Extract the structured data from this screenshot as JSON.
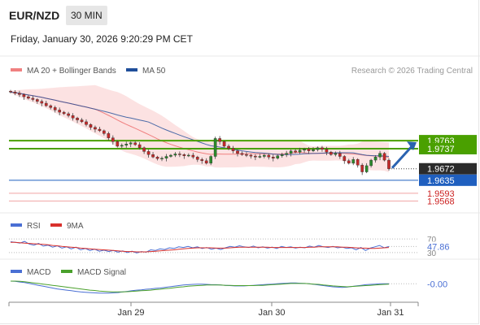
{
  "header": {
    "pair": "EUR/NZD",
    "timeframe": "30 MIN",
    "datetime": "Friday, January 30, 2026 9:20:29 PM CET"
  },
  "legend": {
    "ma20": "MA 20 + Bollinger Bands",
    "ma50": "MA 50",
    "copyright": "Research © 2026 Trading Central",
    "ma20_color": "#f08080",
    "ma50_color": "#1f4e9a"
  },
  "rsi_legend": {
    "rsi": "RSI",
    "ma": "9MA",
    "rsi_color": "#4a6fd4",
    "ma_color": "#d9302c"
  },
  "macd_legend": {
    "macd": "MACD",
    "signal": "MACD Signal",
    "macd_color": "#4a6fd4",
    "signal_color": "#4aa02c"
  },
  "chart_data": [
    {
      "type": "candlestick",
      "series_label": "EUR/NZD 30 MIN",
      "x_ticks": [
        "Jan 29",
        "Jan 30",
        "Jan 31"
      ],
      "ylim": [
        1.954,
        1.9955
      ],
      "close_series": [
        1.992,
        1.9916,
        1.9912,
        1.9905,
        1.99,
        1.9896,
        1.989,
        1.9884,
        1.9876,
        1.987,
        1.9862,
        1.9855,
        1.985,
        1.9844,
        1.9836,
        1.983,
        1.9824,
        1.9815,
        1.9806,
        1.98,
        1.9795,
        1.9786,
        1.9772,
        1.976,
        1.9745,
        1.9748,
        1.9752,
        1.9756,
        1.975,
        1.974,
        1.9728,
        1.9718,
        1.971,
        1.9705,
        1.9706,
        1.9712,
        1.9716,
        1.972,
        1.9718,
        1.9714,
        1.9716,
        1.971,
        1.9702,
        1.9698,
        1.969,
        1.9712,
        1.977,
        1.976,
        1.9745,
        1.9738,
        1.973,
        1.9722,
        1.9718,
        1.9716,
        1.9713,
        1.971,
        1.9712,
        1.9716,
        1.971,
        1.9706,
        1.9714,
        1.9718,
        1.9722,
        1.973,
        1.9726,
        1.9732,
        1.9736,
        1.973,
        1.9734,
        1.974,
        1.9735,
        1.9726,
        1.9718,
        1.9722,
        1.9712,
        1.9698,
        1.969,
        1.9702,
        1.9684,
        1.9662,
        1.9682,
        1.97,
        1.971,
        1.9722,
        1.97,
        1.9672
      ],
      "levels": [
        {
          "value": "1.9763",
          "color": "#4aa000",
          "style": "solid"
        },
        {
          "value": "1.9737",
          "color": "#4aa000",
          "style": "solid"
        },
        {
          "value": "1.9672",
          "color": "#222222",
          "style": "dotted"
        },
        {
          "value": "1.9635",
          "color": "#1f5fbf",
          "style": "solid"
        },
        {
          "value": "1.9593",
          "color": "#e06666",
          "style": "solid"
        },
        {
          "value": "1.9568",
          "color": "#e06666",
          "style": "solid"
        }
      ],
      "arrow": {
        "direction": "up",
        "from": 1.9672,
        "to": 1.9763,
        "color": "#2a63b0"
      }
    },
    {
      "type": "line",
      "series_label": "RSI",
      "ylim": [
        20,
        80
      ],
      "levels": [
        {
          "value": "70",
          "style": "dotted"
        },
        {
          "value": "47.86",
          "style": "none",
          "highlight": true
        },
        {
          "value": "30",
          "style": "dotted"
        }
      ],
      "series": [
        {
          "name": "RSI",
          "values": [
            62,
            60,
            58,
            63,
            55,
            52,
            57,
            49,
            52,
            46,
            50,
            43,
            47,
            41,
            46,
            38,
            42,
            36,
            40,
            34,
            37,
            33,
            36,
            31,
            35,
            30,
            34,
            29,
            33,
            31,
            38,
            36,
            41,
            39,
            44,
            42,
            47,
            45,
            48,
            44,
            47,
            42,
            45,
            40,
            43,
            39,
            44,
            48,
            46,
            50,
            47,
            45,
            49,
            44,
            47,
            43,
            46,
            42,
            48,
            45,
            47,
            43,
            46,
            44,
            49,
            46,
            51,
            47,
            45,
            48,
            44,
            46,
            42,
            44,
            38,
            45,
            36,
            43,
            47,
            51,
            44,
            48
          ]
        },
        {
          "name": "9MA",
          "values": [
            60,
            60,
            59,
            58,
            57,
            56,
            55,
            54,
            53,
            51,
            50,
            48,
            47,
            46,
            45,
            43,
            42,
            41,
            40,
            39,
            38,
            37,
            36,
            35,
            34,
            33,
            33,
            32,
            32,
            32,
            33,
            34,
            35,
            36,
            37,
            38,
            40,
            41,
            42,
            43,
            44,
            44,
            44,
            44,
            43,
            43,
            43,
            44,
            45,
            46,
            46,
            46,
            46,
            46,
            46,
            46,
            45,
            45,
            45,
            45,
            45,
            45,
            45,
            45,
            46,
            46,
            47,
            47,
            47,
            47,
            47,
            46,
            46,
            45,
            44,
            43,
            43,
            42,
            42,
            43,
            44,
            45
          ]
        }
      ]
    },
    {
      "type": "line",
      "series_label": "MACD",
      "ylim": [
        -0.005,
        0.0012
      ],
      "levels": [
        {
          "value": "-0.00"
        }
      ],
      "series": [
        {
          "name": "MACD",
          "values": [
            0.0004,
            0.0003,
            0.0001,
            -0.0001,
            -0.0004,
            -0.0007,
            -0.001,
            -0.0013,
            -0.0016,
            -0.0019,
            -0.0022,
            -0.0024,
            -0.0026,
            -0.0028,
            -0.003,
            -0.0032,
            -0.0033,
            -0.0034,
            -0.0035,
            -0.0036,
            -0.0036,
            -0.0036,
            -0.0035,
            -0.0034,
            -0.0032,
            -0.003,
            -0.0028,
            -0.0026,
            -0.0025,
            -0.0023,
            -0.0022,
            -0.002,
            -0.0019,
            -0.0017,
            -0.0015,
            -0.0013,
            -0.0011,
            -0.0009,
            -0.0008,
            -0.0007,
            -0.0006,
            -0.0006,
            -0.0007,
            -0.0008,
            -0.0008,
            -0.0009,
            -0.001,
            -0.0011,
            -0.0012,
            -0.0012,
            -0.0012,
            -0.0011,
            -0.001,
            -0.0009,
            -0.0008,
            -0.0007,
            -0.0006,
            -0.0005,
            -0.0004,
            -0.0003,
            -0.0002,
            -0.0002,
            -0.0003,
            -0.0004,
            -0.0005,
            -0.0007,
            -0.0009,
            -0.0011,
            -0.0013,
            -0.0015,
            -0.0016,
            -0.0017,
            -0.0016,
            -0.0014,
            -0.0012,
            -0.001,
            -0.0008,
            -0.0007,
            -0.0006,
            -0.0005,
            -0.0005,
            -0.0005
          ]
        },
        {
          "name": "MACD Signal",
          "values": [
            0.0004,
            0.0004,
            0.0003,
            0.0002,
            0.0,
            -0.0002,
            -0.0004,
            -0.0006,
            -0.0008,
            -0.001,
            -0.0012,
            -0.0014,
            -0.0016,
            -0.0018,
            -0.002,
            -0.0022,
            -0.0024,
            -0.0026,
            -0.0027,
            -0.0029,
            -0.003,
            -0.0031,
            -0.0032,
            -0.0032,
            -0.0032,
            -0.0031,
            -0.003,
            -0.0029,
            -0.0028,
            -0.0027,
            -0.0026,
            -0.0024,
            -0.0023,
            -0.0021,
            -0.002,
            -0.0018,
            -0.0016,
            -0.0015,
            -0.0013,
            -0.0012,
            -0.0011,
            -0.001,
            -0.0009,
            -0.0009,
            -0.0009,
            -0.0009,
            -0.001,
            -0.001,
            -0.0011,
            -0.0011,
            -0.0011,
            -0.0011,
            -0.0011,
            -0.001,
            -0.001,
            -0.0009,
            -0.0008,
            -0.0007,
            -0.0006,
            -0.0005,
            -0.0004,
            -0.0004,
            -0.0004,
            -0.0004,
            -0.0005,
            -0.0006,
            -0.0007,
            -0.0009,
            -0.001,
            -0.0012,
            -0.0013,
            -0.0014,
            -0.0015,
            -0.0014,
            -0.0013,
            -0.0012,
            -0.0011,
            -0.001,
            -0.0009,
            -0.0008,
            -0.0007,
            -0.0006
          ]
        }
      ]
    }
  ]
}
